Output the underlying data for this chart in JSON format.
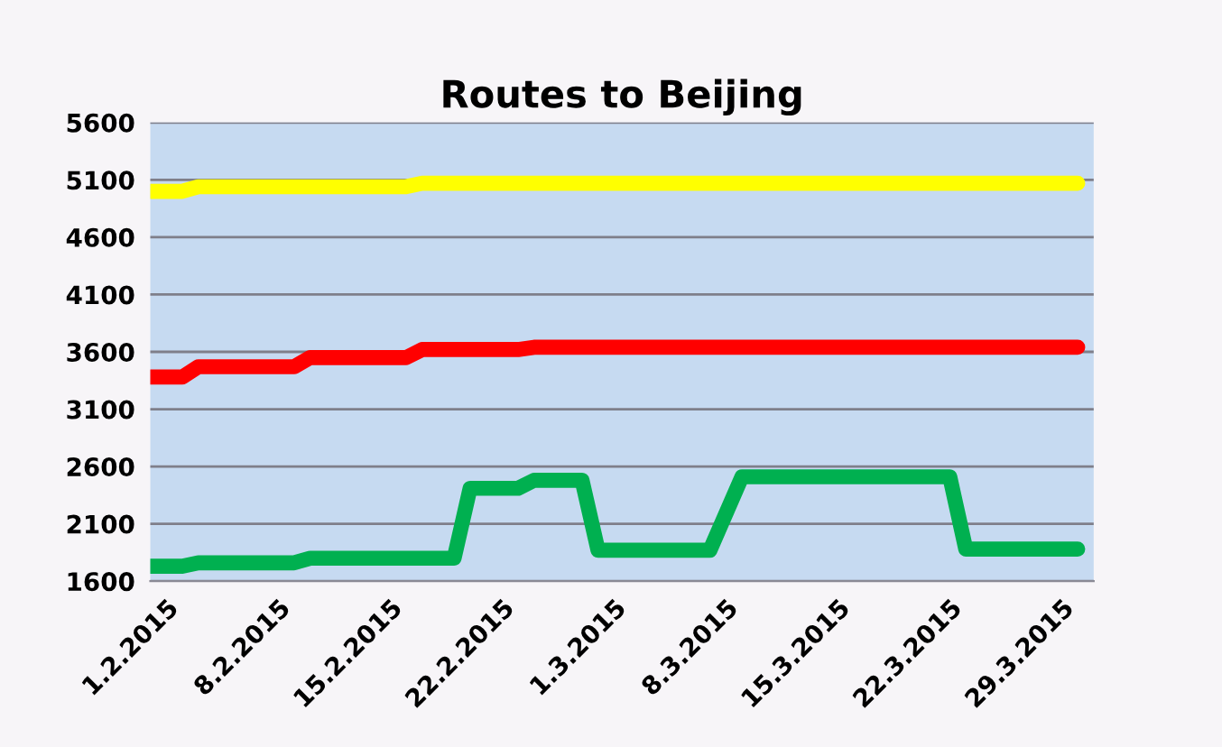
{
  "chart_data": {
    "type": "line",
    "title": "Routes to Beijing",
    "xlim": [
      "2015-01-31",
      "2015-03-31"
    ],
    "xticks": [
      {
        "value": "2015-02-01",
        "label": "1.2.2015"
      },
      {
        "value": "2015-02-08",
        "label": "8.2.2015"
      },
      {
        "value": "2015-02-15",
        "label": "15.2.2015"
      },
      {
        "value": "2015-02-22",
        "label": "22.2.2015"
      },
      {
        "value": "2015-03-01",
        "label": "1.3.2015"
      },
      {
        "value": "2015-03-08",
        "label": "8.3.2015"
      },
      {
        "value": "2015-03-15",
        "label": "15.3.2015"
      },
      {
        "value": "2015-03-22",
        "label": "22.3.2015"
      },
      {
        "value": "2015-03-29",
        "label": "29.3.2015"
      }
    ],
    "ylim": [
      1600,
      5600
    ],
    "yticks": [
      1600,
      2100,
      2600,
      3100,
      3600,
      4100,
      4600,
      5100,
      5600
    ],
    "grid": "y",
    "marker": "none",
    "line_style": "solid",
    "series": [
      {
        "color": "#ffff00",
        "x": [
          "2015-01-31",
          "2015-02-02",
          "2015-02-03",
          "2015-02-16",
          "2015-02-17",
          "2015-03-30"
        ],
        "values": [
          5000,
          5000,
          5040,
          5040,
          5070,
          5070
        ]
      },
      {
        "color": "#ff0000",
        "x": [
          "2015-01-31",
          "2015-02-02",
          "2015-02-03",
          "2015-02-09",
          "2015-02-10",
          "2015-02-16",
          "2015-02-17",
          "2015-02-23",
          "2015-02-24",
          "2015-03-30"
        ],
        "values": [
          3380,
          3380,
          3470,
          3470,
          3550,
          3550,
          3620,
          3620,
          3640,
          3640
        ]
      },
      {
        "color": "#00b050",
        "x": [
          "2015-01-31",
          "2015-02-02",
          "2015-02-03",
          "2015-02-09",
          "2015-02-10",
          "2015-02-19",
          "2015-02-20",
          "2015-02-23",
          "2015-02-24",
          "2015-02-27",
          "2015-02-28",
          "2015-03-07",
          "2015-03-09",
          "2015-03-22",
          "2015-03-23",
          "2015-03-30"
        ],
        "values": [
          1730,
          1730,
          1760,
          1760,
          1800,
          1800,
          2410,
          2410,
          2480,
          2480,
          1870,
          1870,
          2510,
          2510,
          1880,
          1880
        ]
      }
    ]
  }
}
